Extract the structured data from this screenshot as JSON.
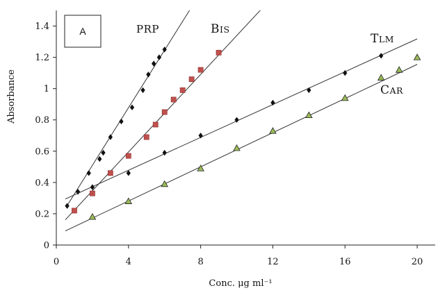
{
  "chart_data": {
    "type": "scatter",
    "panel_label": "A",
    "xlabel": "Conc. μg ml⁻¹",
    "ylabel": "Absorbance",
    "xlim": [
      0,
      21
    ],
    "ylim": [
      0,
      1.5
    ],
    "xticks": [
      0,
      4,
      8,
      12,
      16,
      20
    ],
    "yticks": [
      0,
      0.2,
      0.4,
      0.6,
      0.8,
      1,
      1.2,
      1.4
    ],
    "xtick_labels": [
      "0",
      "4",
      "8",
      "12",
      "16",
      "20"
    ],
    "ytick_labels": [
      "0",
      "0.2",
      "0.4",
      "0.6",
      "0.8",
      "1",
      "1.2",
      "1.4"
    ],
    "grid": false,
    "series": [
      {
        "name": "PRP",
        "marker": "diamond",
        "color": "#111111",
        "points": [
          [
            0.6,
            0.25
          ],
          [
            1.2,
            0.34
          ],
          [
            1.8,
            0.46
          ],
          [
            2.4,
            0.55
          ],
          [
            2.6,
            0.59
          ],
          [
            3,
            0.69
          ],
          [
            3.6,
            0.79
          ],
          [
            4.2,
            0.88
          ],
          [
            4.8,
            0.99
          ],
          [
            5.1,
            1.09
          ],
          [
            5.4,
            1.16
          ],
          [
            5.7,
            1.2
          ],
          [
            6,
            1.25
          ]
        ],
        "fit": {
          "slope": 0.184,
          "intercept": 0.142
        }
      },
      {
        "name": "BIS",
        "marker": "square",
        "color": "#c0504d",
        "points": [
          [
            1,
            0.22
          ],
          [
            2,
            0.33
          ],
          [
            3,
            0.46
          ],
          [
            4,
            0.57
          ],
          [
            5,
            0.69
          ],
          [
            5.5,
            0.77
          ],
          [
            6,
            0.85
          ],
          [
            6.5,
            0.93
          ],
          [
            7,
            0.99
          ],
          [
            7.5,
            1.06
          ],
          [
            8,
            1.12
          ],
          [
            9,
            1.23
          ]
        ],
        "fit": {
          "slope": 0.124,
          "intercept": 0.099
        }
      },
      {
        "name": "TLM",
        "marker": "diamond",
        "color": "#111111",
        "points": [
          [
            2,
            0.37
          ],
          [
            4,
            0.46
          ],
          [
            6,
            0.59
          ],
          [
            8,
            0.7
          ],
          [
            10,
            0.8
          ],
          [
            12,
            0.91
          ],
          [
            14,
            0.99
          ],
          [
            16,
            1.1
          ],
          [
            18,
            1.21
          ]
        ],
        "fit": {
          "slope": 0.0525,
          "intercept": 0.268
        }
      },
      {
        "name": "CAR",
        "marker": "triangle",
        "color": "#9bbb59",
        "points": [
          [
            2,
            0.18
          ],
          [
            4,
            0.28
          ],
          [
            6,
            0.39
          ],
          [
            8,
            0.49
          ],
          [
            10,
            0.62
          ],
          [
            12,
            0.73
          ],
          [
            14,
            0.83
          ],
          [
            16,
            0.94
          ],
          [
            18,
            1.07
          ],
          [
            19,
            1.12
          ],
          [
            20,
            1.2
          ]
        ],
        "fit": {
          "slope": 0.0546,
          "intercept": 0.063
        }
      }
    ]
  }
}
